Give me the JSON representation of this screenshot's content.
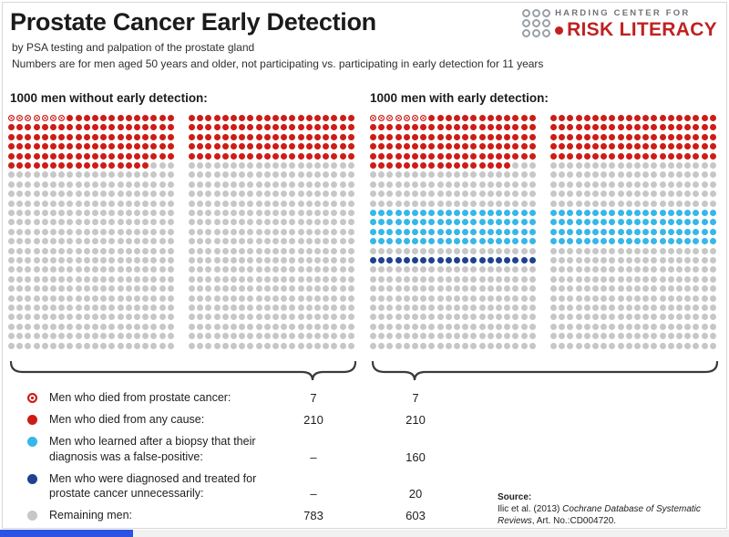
{
  "header": {
    "title": "Prostate Cancer Early Detection",
    "subtitle1": "by PSA testing and palpation of the prostate gland",
    "subtitle2": "Numbers are for men aged 50 years and older, not participating vs. participating in early detection for 11 years"
  },
  "logo": {
    "top_text": "HARDING CENTER FOR",
    "main_text": "RISK LITERACY",
    "accent_color": "#c02121",
    "circle_color": "#9aa0a6"
  },
  "colors": {
    "pc-death": "#cd1c16",
    "any-death": "#cd1c16",
    "false-positive": "#36b7e9",
    "overtreated": "#1f418f",
    "remaining": "#c7c7c7",
    "brace": "#3a3a3a",
    "progress_blue": "#2b54e4"
  },
  "arrays": {
    "grid": {
      "columns": 40,
      "rows": 25,
      "split_after": 20
    },
    "left": {
      "heading": "1000 men without early detection:",
      "segments": [
        {
          "type": "pc-death",
          "count": 7
        },
        {
          "type": "any-death",
          "count": 210
        },
        {
          "type": "remaining",
          "count": 783
        }
      ]
    },
    "right": {
      "heading": "1000 men with early detection:",
      "segments": [
        {
          "type": "pc-death",
          "count": 7
        },
        {
          "type": "any-death",
          "count": 210
        },
        {
          "type": "remaining",
          "count": 183
        },
        {
          "type": "false-positive",
          "count": 160
        },
        {
          "type": "remaining",
          "count": 40
        },
        {
          "type": "overtreated",
          "count": 20
        },
        {
          "type": "remaining",
          "count": 380
        }
      ]
    }
  },
  "legend": {
    "rows": [
      {
        "type": "pc-death",
        "label": "Men who died from prostate cancer:",
        "without": "7",
        "with": "7"
      },
      {
        "type": "any-death",
        "label": "Men who died from any cause:",
        "without": "210",
        "with": "210"
      },
      {
        "type": "false-positive",
        "label": "Men who learned after a biopsy that their diagnosis was a false-positive:",
        "without": "–",
        "with": "160"
      },
      {
        "type": "overtreated",
        "label": "Men who were diagnosed and treated for prostate cancer unnecessarily:",
        "without": "–",
        "with": "20"
      },
      {
        "type": "remaining",
        "label": "Remaining men:",
        "without": "783",
        "with": "603"
      }
    ]
  },
  "source": {
    "label": "Source:",
    "text_prefix": "Ilic et al. (2013) ",
    "text_italic": "Cochrane Database of Systematic Reviews",
    "text_suffix": ", Art. No.:CD004720."
  },
  "chart_data": {
    "type": "icon-array",
    "title": "Prostate Cancer Early Detection",
    "unit": "per 1000 men aged 50 years and older, over 11 years",
    "groups": [
      "1000 men without early detection",
      "1000 men with early detection"
    ],
    "series": [
      {
        "name": "Men who died from prostate cancer",
        "values": [
          7,
          7
        ]
      },
      {
        "name": "Men who died from any cause",
        "values": [
          210,
          210
        ]
      },
      {
        "name": "Men who learned after a biopsy that their diagnosis was a false-positive",
        "values": [
          null,
          160
        ]
      },
      {
        "name": "Men who were diagnosed and treated for prostate cancer unnecessarily",
        "values": [
          null,
          20
        ]
      },
      {
        "name": "Remaining men",
        "values": [
          783,
          603
        ]
      }
    ]
  }
}
